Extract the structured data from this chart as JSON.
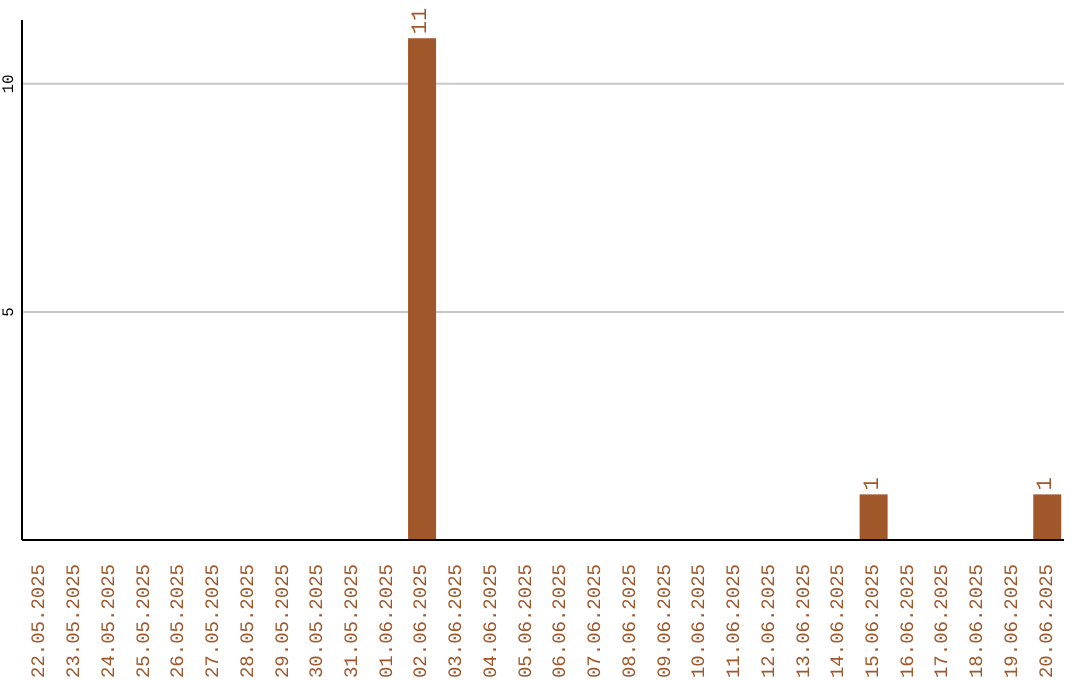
{
  "chart_data": {
    "type": "bar",
    "categories": [
      "22.05.2025",
      "23.05.2025",
      "24.05.2025",
      "25.05.2025",
      "26.05.2025",
      "27.05.2025",
      "28.05.2025",
      "29.05.2025",
      "30.05.2025",
      "31.05.2025",
      "01.06.2025",
      "02.06.2025",
      "03.06.2025",
      "04.06.2025",
      "05.06.2025",
      "06.06.2025",
      "07.06.2025",
      "08.06.2025",
      "09.06.2025",
      "10.06.2025",
      "11.06.2025",
      "12.06.2025",
      "13.06.2025",
      "14.06.2025",
      "15.06.2025",
      "16.06.2025",
      "17.06.2025",
      "18.06.2025",
      "19.06.2025",
      "20.06.2025"
    ],
    "values": [
      0,
      0,
      0,
      0,
      0,
      0,
      0,
      0,
      0,
      0,
      0,
      11,
      0,
      0,
      0,
      0,
      0,
      0,
      0,
      0,
      0,
      0,
      0,
      0,
      1,
      0,
      0,
      0,
      0,
      1
    ],
    "value_labels": [
      null,
      null,
      null,
      null,
      null,
      null,
      null,
      null,
      null,
      null,
      null,
      "11",
      null,
      null,
      null,
      null,
      null,
      null,
      null,
      null,
      null,
      null,
      null,
      null,
      "1",
      null,
      null,
      null,
      null,
      "1"
    ],
    "color": "#a0572a",
    "ylim": [
      0,
      11.4
    ],
    "yticks": [
      5,
      10
    ],
    "grid": "y",
    "legend": false
  }
}
